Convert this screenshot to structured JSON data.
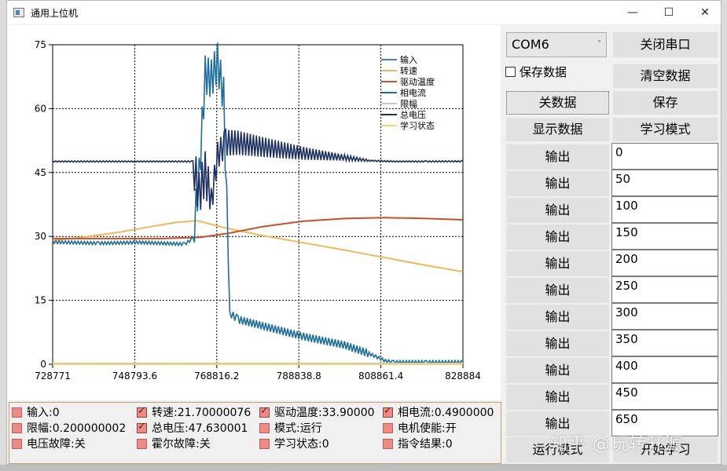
{
  "window": {
    "title": "通用上位机",
    "minimize": "—",
    "maximize": "☐",
    "close": "✕"
  },
  "controls": {
    "port": "COM6",
    "close_port": "关闭串口",
    "save_data_label": "保存数据",
    "clear_data": "清空数据",
    "toggle_data": "关数据",
    "save": "保存",
    "show_data": "显示数据",
    "learn_mode": "学习模式",
    "output_label": "输出",
    "output_values": [
      "0",
      "50",
      "100",
      "150",
      "200",
      "250",
      "300",
      "350",
      "400",
      "450",
      "650"
    ],
    "run_mode": "运行模式",
    "start_learn": "开始学习"
  },
  "status_items": [
    {
      "text": "输入:0",
      "checked": false
    },
    {
      "text": "转速:21.70000076",
      "checked": true
    },
    {
      "text": "驱动温度:33.90000",
      "checked": true
    },
    {
      "text": "相电流:0.4900000",
      "checked": true
    },
    {
      "text": "限幅:0.200000002",
      "checked": false
    },
    {
      "text": "总电压:47.630001",
      "checked": true
    },
    {
      "text": "模式:运行",
      "checked": false
    },
    {
      "text": "电机使能:开",
      "checked": false
    },
    {
      "text": "电压故障:关",
      "checked": false
    },
    {
      "text": "霍尔故障:关",
      "checked": false
    },
    {
      "text": "学习状态:0",
      "checked": false
    },
    {
      "text": "指令结果:0",
      "checked": false
    }
  ],
  "watermark": "知乎 @玩转开源",
  "chart_data": {
    "type": "line",
    "title": "",
    "xlabel": "",
    "ylabel": "",
    "xlim": [
      728771,
      828884
    ],
    "ylim": [
      0,
      75
    ],
    "x_ticks": [
      "728771",
      "748793.6",
      "768816.2",
      "788838.8",
      "808861.4",
      "828884"
    ],
    "y_ticks": [
      "75",
      "60",
      "45",
      "30",
      "15",
      "0"
    ],
    "grid": true,
    "legend_position": "top-right",
    "series": [
      {
        "name": "输入",
        "color": "#4a7fd4",
        "x": [
          728771,
          828884
        ],
        "y": [
          0,
          0
        ]
      },
      {
        "name": "转速",
        "color": "#f0b85a",
        "x": [
          728771,
          736000,
          745000,
          752000,
          759000,
          764000,
          770000,
          780000,
          790000,
          800000,
          810000,
          820000,
          828884
        ],
        "y": [
          29.0,
          29.8,
          31.0,
          32.2,
          33.3,
          33.7,
          32.2,
          30.2,
          28.5,
          26.8,
          25.0,
          23.2,
          21.7
        ]
      },
      {
        "name": "驱动温度",
        "color": "#c8502a",
        "x": [
          728771,
          740000,
          755000,
          765000,
          772000,
          780000,
          790000,
          800000,
          810000,
          820000,
          828884
        ],
        "y": [
          29.5,
          29.5,
          29.5,
          29.8,
          30.8,
          32.3,
          33.6,
          34.2,
          34.4,
          34.2,
          33.9
        ]
      },
      {
        "name": "相电流",
        "color": "#1f6e99",
        "x": [
          728771,
          740000,
          750000,
          761000,
          763000,
          764500,
          766000,
          767500,
          769000,
          770500,
          772000,
          774000,
          780000,
          790000,
          800000,
          806000,
          810000,
          812000,
          820000,
          828884
        ],
        "y": [
          28.7,
          28.4,
          28.6,
          28.2,
          29.5,
          44,
          68,
          67,
          71,
          63,
          12,
          10.5,
          9.0,
          6.5,
          4.5,
          2.5,
          0.8,
          0.5,
          0.5,
          0.49
        ]
      },
      {
        "name": "限幅",
        "color": "#c8c8c8",
        "x": [
          728771,
          828884
        ],
        "y": [
          0.2,
          0.2
        ]
      },
      {
        "name": "总电压",
        "color": "#1c2f5e",
        "x": [
          728771,
          763000,
          764500,
          766000,
          767500,
          769000,
          771000,
          774000,
          780000,
          790000,
          800000,
          806000,
          812000,
          820000,
          828884
        ],
        "y": [
          47.6,
          47.6,
          40,
          45,
          38,
          49,
          52,
          52,
          51,
          49.5,
          48.5,
          47.8,
          47.6,
          47.6,
          47.63
        ]
      },
      {
        "name": "学习状态",
        "color": "#f5cf70",
        "x": [
          728771,
          828884
        ],
        "y": [
          0,
          0
        ]
      }
    ]
  }
}
